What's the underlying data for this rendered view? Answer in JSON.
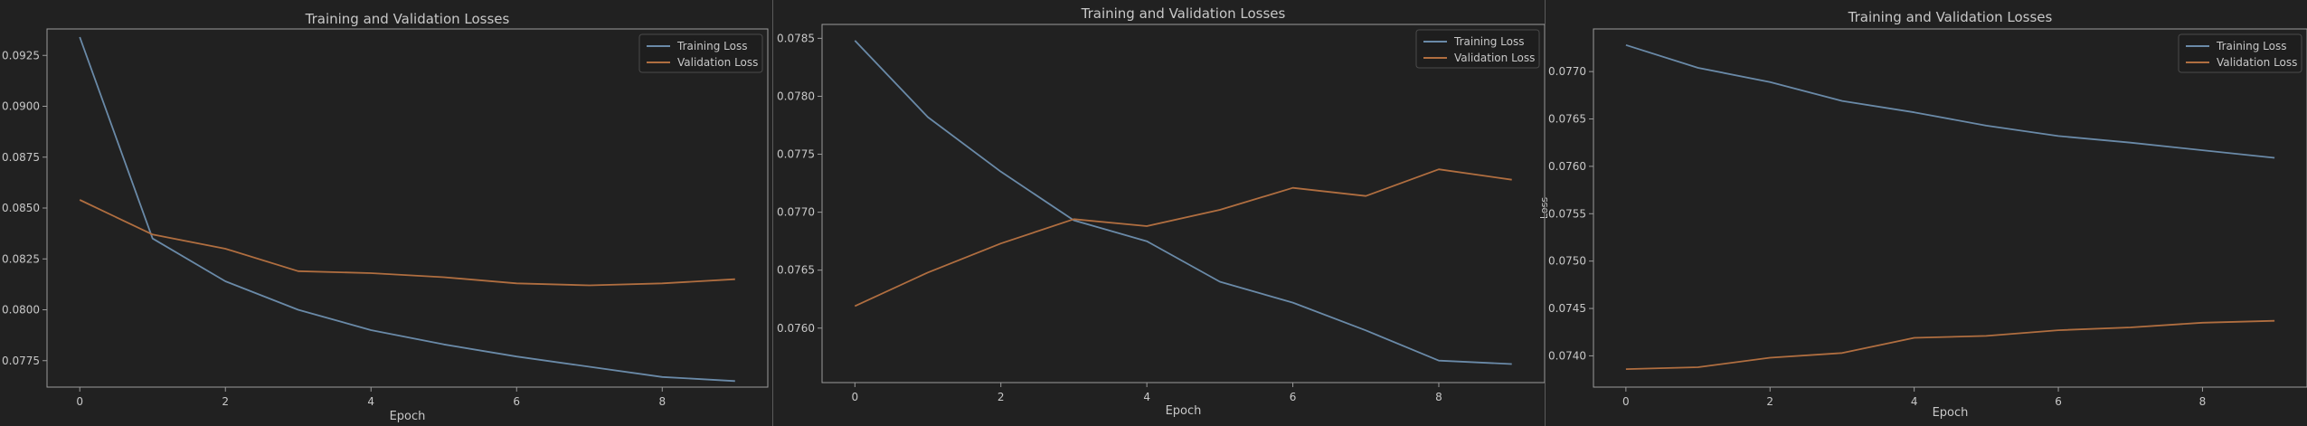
{
  "colors": {
    "background": "#212121",
    "axes": "#9a9a9a",
    "text": "#c8c8c8",
    "training": "#6a8aa8",
    "validation": "#b06e40",
    "legend_bg": "#1e1e1e",
    "legend_border": "#4a4a4a"
  },
  "chart_data": [
    {
      "type": "line",
      "title": "Training and Validation Losses",
      "xlabel": "Epoch",
      "ylabel": "",
      "x": [
        0,
        1,
        2,
        3,
        4,
        5,
        6,
        7,
        8,
        9
      ],
      "xticks": [
        0,
        2,
        4,
        6,
        8
      ],
      "xlim": [
        -0.45,
        9.45
      ],
      "yticks": [
        "0.0775",
        "0.0800",
        "0.0825",
        "0.0850",
        "0.0875",
        "0.0900",
        "0.0925"
      ],
      "ylim": [
        0.0762,
        0.0938
      ],
      "legend": "top-right",
      "grid": false,
      "series": [
        {
          "name": "Training Loss",
          "color_key": "training",
          "values": [
            0.0934,
            0.0835,
            0.0814,
            0.08,
            0.079,
            0.0783,
            0.0777,
            0.0772,
            0.0767,
            0.0765
          ]
        },
        {
          "name": "Validation Loss",
          "color_key": "validation",
          "values": [
            0.0854,
            0.0837,
            0.083,
            0.0819,
            0.0818,
            0.0816,
            0.0813,
            0.0812,
            0.0813,
            0.0815
          ]
        }
      ]
    },
    {
      "type": "line",
      "title": "Training and Validation Losses",
      "xlabel": "Epoch",
      "ylabel": "",
      "x": [
        0,
        1,
        2,
        3,
        4,
        5,
        6,
        7,
        8,
        9
      ],
      "xticks": [
        0,
        2,
        4,
        6,
        8
      ],
      "xlim": [
        -0.45,
        9.45
      ],
      "yticks": [
        "0.0760",
        "0.0765",
        "0.0770",
        "0.0775",
        "0.0780",
        "0.0785"
      ],
      "ylim": [
        0.07553,
        0.07862
      ],
      "legend": "top-right",
      "grid": false,
      "series": [
        {
          "name": "Training Loss",
          "color_key": "training",
          "values": [
            0.07848,
            0.07782,
            0.07735,
            0.07693,
            0.07675,
            0.0764,
            0.07622,
            0.07598,
            0.07572,
            0.07569
          ]
        },
        {
          "name": "Validation Loss",
          "color_key": "validation",
          "values": [
            0.07619,
            0.07648,
            0.07673,
            0.07694,
            0.07688,
            0.07702,
            0.07721,
            0.07714,
            0.07737,
            0.07728
          ]
        }
      ]
    },
    {
      "type": "line",
      "title": "Training and Validation Losses",
      "xlabel": "Epoch",
      "ylabel": "Loss",
      "x": [
        0,
        1,
        2,
        3,
        4,
        5,
        6,
        7,
        8,
        9
      ],
      "xticks": [
        0,
        2,
        4,
        6,
        8
      ],
      "xlim": [
        -0.45,
        9.45
      ],
      "yticks": [
        "0.0740",
        "0.0745",
        "0.0750",
        "0.0755",
        "0.0760",
        "0.0765",
        "0.0770"
      ],
      "ylim": [
        0.07367,
        0.07745
      ],
      "legend": "top-right",
      "grid": false,
      "series": [
        {
          "name": "Training Loss",
          "color_key": "training",
          "values": [
            0.07728,
            0.07704,
            0.07689,
            0.07669,
            0.07657,
            0.07643,
            0.07632,
            0.07625,
            0.07617,
            0.07609
          ]
        },
        {
          "name": "Validation Loss",
          "color_key": "validation",
          "values": [
            0.07386,
            0.07388,
            0.07398,
            0.07403,
            0.07419,
            0.07421,
            0.07427,
            0.0743,
            0.07435,
            0.07437
          ]
        }
      ]
    }
  ]
}
